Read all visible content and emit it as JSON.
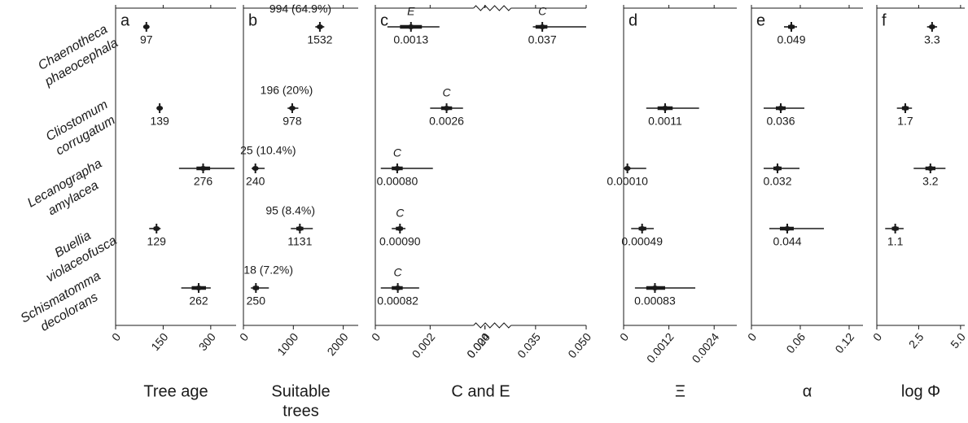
{
  "chart_data": [
    {
      "type": "forest",
      "panel": "a",
      "xlabel": "Tree age",
      "xlim": [
        0,
        380
      ],
      "xticks": [
        0,
        150,
        300
      ],
      "color": "#1a1a1a",
      "categories": [
        [
          "Chaenotheca",
          "phaeocephala"
        ],
        [
          "Cliostomum",
          "corrugatum"
        ],
        [
          "Lecanographa",
          "amylacea"
        ],
        [
          "Buellia",
          "violaceofusca"
        ],
        [
          "Schismatomma",
          "decolorans"
        ]
      ],
      "series": [
        {
          "values": [
            97,
            139,
            276,
            129,
            262
          ],
          "ci_low": [
            95,
            135,
            200,
            106,
            207
          ],
          "ci_high": [
            99,
            143,
            375,
            142,
            300
          ],
          "iqr_low": [
            96,
            137,
            255,
            120,
            240
          ],
          "iqr_high": [
            98,
            141,
            298,
            137,
            285
          ]
        }
      ]
    },
    {
      "type": "forest",
      "panel": "b",
      "xlabel": [
        "Suitable",
        "trees"
      ],
      "xlim": [
        0,
        2300
      ],
      "xticks": [
        0,
        1000,
        2000
      ],
      "color": "#1a1a1a",
      "annotations": [
        "994 (64.9%)",
        "196 (20%)",
        "25 (10.4%)",
        "95 (8.4%)",
        "18 (7.2%)"
      ],
      "series": [
        {
          "values": [
            1532,
            978,
            240,
            1131,
            250
          ],
          "ci_low": [
            1440,
            885,
            165,
            950,
            150
          ],
          "ci_high": [
            1620,
            1100,
            425,
            1390,
            510
          ],
          "iqr_low": [
            1490,
            950,
            200,
            1060,
            190
          ],
          "iqr_high": [
            1570,
            1010,
            280,
            1200,
            310
          ]
        }
      ]
    },
    {
      "type": "forest",
      "panel": "c",
      "xlabel": "C and E",
      "xlim": [
        0,
        0.05
      ],
      "axis_break": [
        0.004,
        0.02
      ],
      "xticks": [
        0,
        0.002,
        0.004,
        {
          "value": 0.02,
          "label": "0.020"
        },
        0.035,
        {
          "value": 0.05,
          "label": "0.050"
        }
      ],
      "color": "#1a1a1a",
      "series": [
        {
          "name": "E",
          "values": [
            0.0013,
            null,
            null,
            null,
            null
          ],
          "ci_low": [
            0.00044,
            null,
            null,
            null,
            null
          ],
          "ci_high": [
            0.00234,
            null,
            null,
            null,
            null
          ],
          "iqr_low": [
            0.0009,
            null,
            null,
            null,
            null
          ],
          "iqr_high": [
            0.0017,
            null,
            null,
            null,
            null
          ]
        },
        {
          "name": "C",
          "values": [
            0.037,
            0.0026,
            0.0008,
            0.0009,
            0.00082
          ],
          "value_labels": [
            "0.037",
            "0.0026",
            "0.00080",
            "0.00090",
            "0.00082"
          ],
          "ci_low": [
            0.0342,
            0.002,
            0.0002,
            0.0006,
            0.0002
          ],
          "ci_high": [
            0.05,
            0.0032,
            0.0021,
            0.0011,
            0.0016
          ],
          "iqr_low": [
            0.035,
            0.0024,
            0.0006,
            0.00075,
            0.0006
          ],
          "iqr_high": [
            0.0385,
            0.0028,
            0.001,
            0.001,
            0.001
          ]
        }
      ]
    },
    {
      "type": "forest",
      "panel": "d",
      "xlabel": "Ξ",
      "xlim": [
        0,
        0.003
      ],
      "xticks": [
        0,
        0.0012,
        0.0024
      ],
      "color": "#1a1a1a",
      "series": [
        {
          "values": [
            null,
            0.0011,
            0.0001,
            0.00049,
            0.00083
          ],
          "value_labels": [
            null,
            "0.0011",
            "0.00010",
            "0.00049",
            "0.00083"
          ],
          "ci_low": [
            null,
            0.0006,
            0,
            0.0002,
            0.0003
          ],
          "ci_high": [
            null,
            0.002,
            0.0006,
            0.0008,
            0.0019
          ],
          "iqr_low": [
            null,
            0.0009,
            5e-05,
            0.0004,
            0.0006
          ],
          "iqr_high": [
            null,
            0.0013,
            0.00015,
            0.0006,
            0.0011
          ]
        }
      ]
    },
    {
      "type": "forest",
      "panel": "e",
      "xlabel": "α",
      "xlim": [
        0,
        0.137
      ],
      "xticks": [
        0,
        0.06,
        0.12
      ],
      "color": "#1a1a1a",
      "series": [
        {
          "values": [
            0.049,
            0.036,
            0.032,
            0.044,
            null
          ],
          "ci_low": [
            0.04,
            0.015,
            0.015,
            0.022,
            null
          ],
          "ci_high": [
            0.056,
            0.065,
            0.059,
            0.089,
            null
          ],
          "iqr_low": [
            0.045,
            0.03,
            0.027,
            0.035,
            null
          ],
          "iqr_high": [
            0.053,
            0.042,
            0.037,
            0.052,
            null
          ]
        }
      ]
    },
    {
      "type": "forest",
      "panel": "f",
      "xlabel": "log Φ",
      "xlim": [
        0,
        5.25
      ],
      "xticks": [
        0,
        2.5,
        {
          "value": 5,
          "label": "5.0"
        }
      ],
      "color": "#1a1a1a",
      "series": [
        {
          "values": [
            3.3,
            1.7,
            3.2,
            1.1,
            null
          ],
          "ci_low": [
            3.0,
            1.2,
            2.2,
            0.5,
            null
          ],
          "ci_high": [
            3.6,
            2.1,
            4.1,
            1.6,
            null
          ],
          "iqr_low": [
            3.15,
            1.5,
            2.9,
            0.9,
            null
          ],
          "iqr_high": [
            3.45,
            1.9,
            3.5,
            1.3,
            null
          ]
        }
      ]
    }
  ]
}
